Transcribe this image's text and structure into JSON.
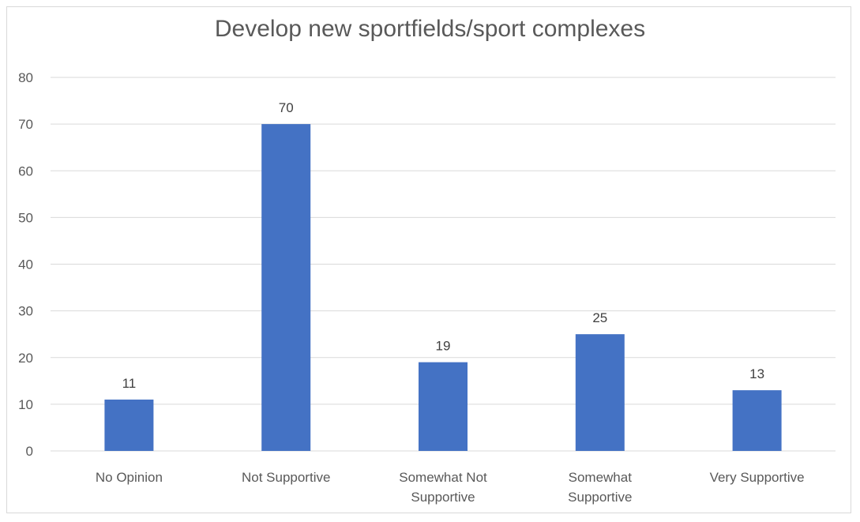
{
  "chart_data": {
    "type": "bar",
    "title": "Develop new sportfields/sport complexes",
    "categories": [
      [
        "No Opinion"
      ],
      [
        "Not Supportive"
      ],
      [
        "Somewhat Not",
        "Supportive"
      ],
      [
        "Somewhat",
        "Supportive"
      ],
      [
        "Very Supportive"
      ]
    ],
    "values": [
      11,
      70,
      19,
      25,
      13
    ],
    "data_labels": [
      "11",
      "70",
      "19",
      "25",
      "13"
    ],
    "ylim": [
      0,
      80
    ],
    "yticks": [
      "0",
      "10",
      "20",
      "30",
      "40",
      "50",
      "60",
      "70",
      "80"
    ],
    "grid": true,
    "legend": "none",
    "bar_color": "#4472c4",
    "grid_color": "#d9d9d9",
    "text_color": "#595959"
  }
}
